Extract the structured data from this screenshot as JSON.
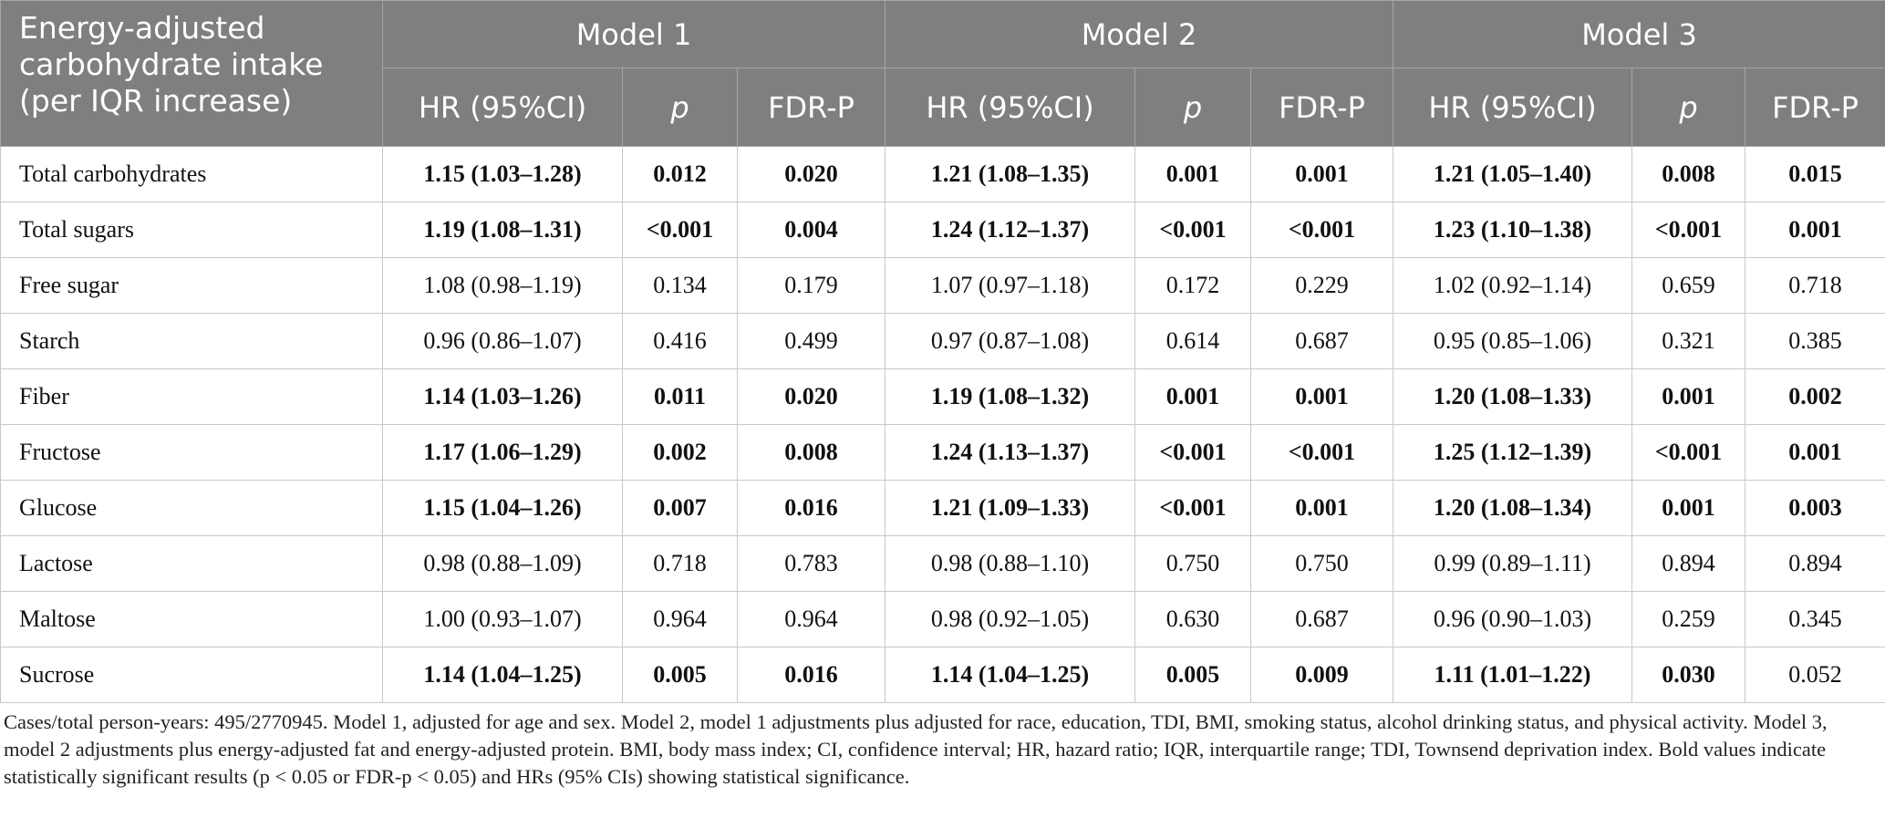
{
  "table": {
    "corner": "Energy-adjusted carbohydrate intake (per IQR increase)",
    "models": [
      "Model 1",
      "Model 2",
      "Model 3"
    ],
    "columns": [
      "HR (95%CI)",
      "p",
      "FDR-P"
    ],
    "rows": [
      {
        "label": "Total carbohydrates",
        "cells": [
          "1.15 (1.03–1.28)",
          "0.012",
          "0.020",
          "1.21 (1.08–1.35)",
          "0.001",
          "0.001",
          "1.21 (1.05–1.40)",
          "0.008",
          "0.015"
        ],
        "bold": [
          true,
          true,
          true,
          true,
          true,
          true,
          true,
          true,
          true
        ]
      },
      {
        "label": "Total sugars",
        "cells": [
          "1.19 (1.08–1.31)",
          "<0.001",
          "0.004",
          "1.24 (1.12–1.37)",
          "<0.001",
          "<0.001",
          "1.23 (1.10–1.38)",
          "<0.001",
          "0.001"
        ],
        "bold": [
          true,
          true,
          true,
          true,
          true,
          true,
          true,
          true,
          true
        ]
      },
      {
        "label": "Free sugar",
        "cells": [
          "1.08 (0.98–1.19)",
          "0.134",
          "0.179",
          "1.07 (0.97–1.18)",
          "0.172",
          "0.229",
          "1.02 (0.92–1.14)",
          "0.659",
          "0.718"
        ],
        "bold": [
          false,
          false,
          false,
          false,
          false,
          false,
          false,
          false,
          false
        ]
      },
      {
        "label": "Starch",
        "cells": [
          "0.96 (0.86–1.07)",
          "0.416",
          "0.499",
          "0.97 (0.87–1.08)",
          "0.614",
          "0.687",
          "0.95 (0.85–1.06)",
          "0.321",
          "0.385"
        ],
        "bold": [
          false,
          false,
          false,
          false,
          false,
          false,
          false,
          false,
          false
        ]
      },
      {
        "label": "Fiber",
        "cells": [
          "1.14 (1.03–1.26)",
          "0.011",
          "0.020",
          "1.19 (1.08–1.32)",
          "0.001",
          "0.001",
          "1.20 (1.08–1.33)",
          "0.001",
          "0.002"
        ],
        "bold": [
          true,
          true,
          true,
          true,
          true,
          true,
          true,
          true,
          true
        ]
      },
      {
        "label": "Fructose",
        "cells": [
          "1.17 (1.06–1.29)",
          "0.002",
          "0.008",
          "1.24 (1.13–1.37)",
          "<0.001",
          "<0.001",
          "1.25 (1.12–1.39)",
          "<0.001",
          "0.001"
        ],
        "bold": [
          true,
          true,
          true,
          true,
          true,
          true,
          true,
          true,
          true
        ]
      },
      {
        "label": "Glucose",
        "cells": [
          "1.15 (1.04–1.26)",
          "0.007",
          "0.016",
          "1.21 (1.09–1.33)",
          "<0.001",
          "0.001",
          "1.20 (1.08–1.34)",
          "0.001",
          "0.003"
        ],
        "bold": [
          true,
          true,
          true,
          true,
          true,
          true,
          true,
          true,
          true
        ]
      },
      {
        "label": "Lactose",
        "cells": [
          "0.98 (0.88–1.09)",
          "0.718",
          "0.783",
          "0.98 (0.88–1.10)",
          "0.750",
          "0.750",
          "0.99 (0.89–1.11)",
          "0.894",
          "0.894"
        ],
        "bold": [
          false,
          false,
          false,
          false,
          false,
          false,
          false,
          false,
          false
        ]
      },
      {
        "label": "Maltose",
        "cells": [
          "1.00 (0.93–1.07)",
          "0.964",
          "0.964",
          "0.98 (0.92–1.05)",
          "0.630",
          "0.687",
          "0.96 (0.90–1.03)",
          "0.259",
          "0.345"
        ],
        "bold": [
          false,
          false,
          false,
          false,
          false,
          false,
          false,
          false,
          false
        ]
      },
      {
        "label": "Sucrose",
        "cells": [
          "1.14 (1.04–1.25)",
          "0.005",
          "0.016",
          "1.14 (1.04–1.25)",
          "0.005",
          "0.009",
          "1.11 (1.01–1.22)",
          "0.030",
          "0.052"
        ],
        "bold": [
          true,
          true,
          true,
          true,
          true,
          true,
          true,
          true,
          false
        ]
      }
    ],
    "footnote": "Cases/total person-years: 495/2770945. Model 1, adjusted for age and sex. Model 2, model 1 adjustments plus adjusted for race, education, TDI, BMI, smoking status, alcohol drinking status, and physical activity. Model 3, model 2 adjustments plus energy-adjusted fat and energy-adjusted protein. BMI, body mass index; CI, confidence interval; HR, hazard ratio; IQR, interquartile range; TDI, Townsend deprivation index. Bold values indicate statistically significant results (p < 0.05 or FDR-p < 0.05) and HRs (95% CIs) showing statistical significance."
  }
}
